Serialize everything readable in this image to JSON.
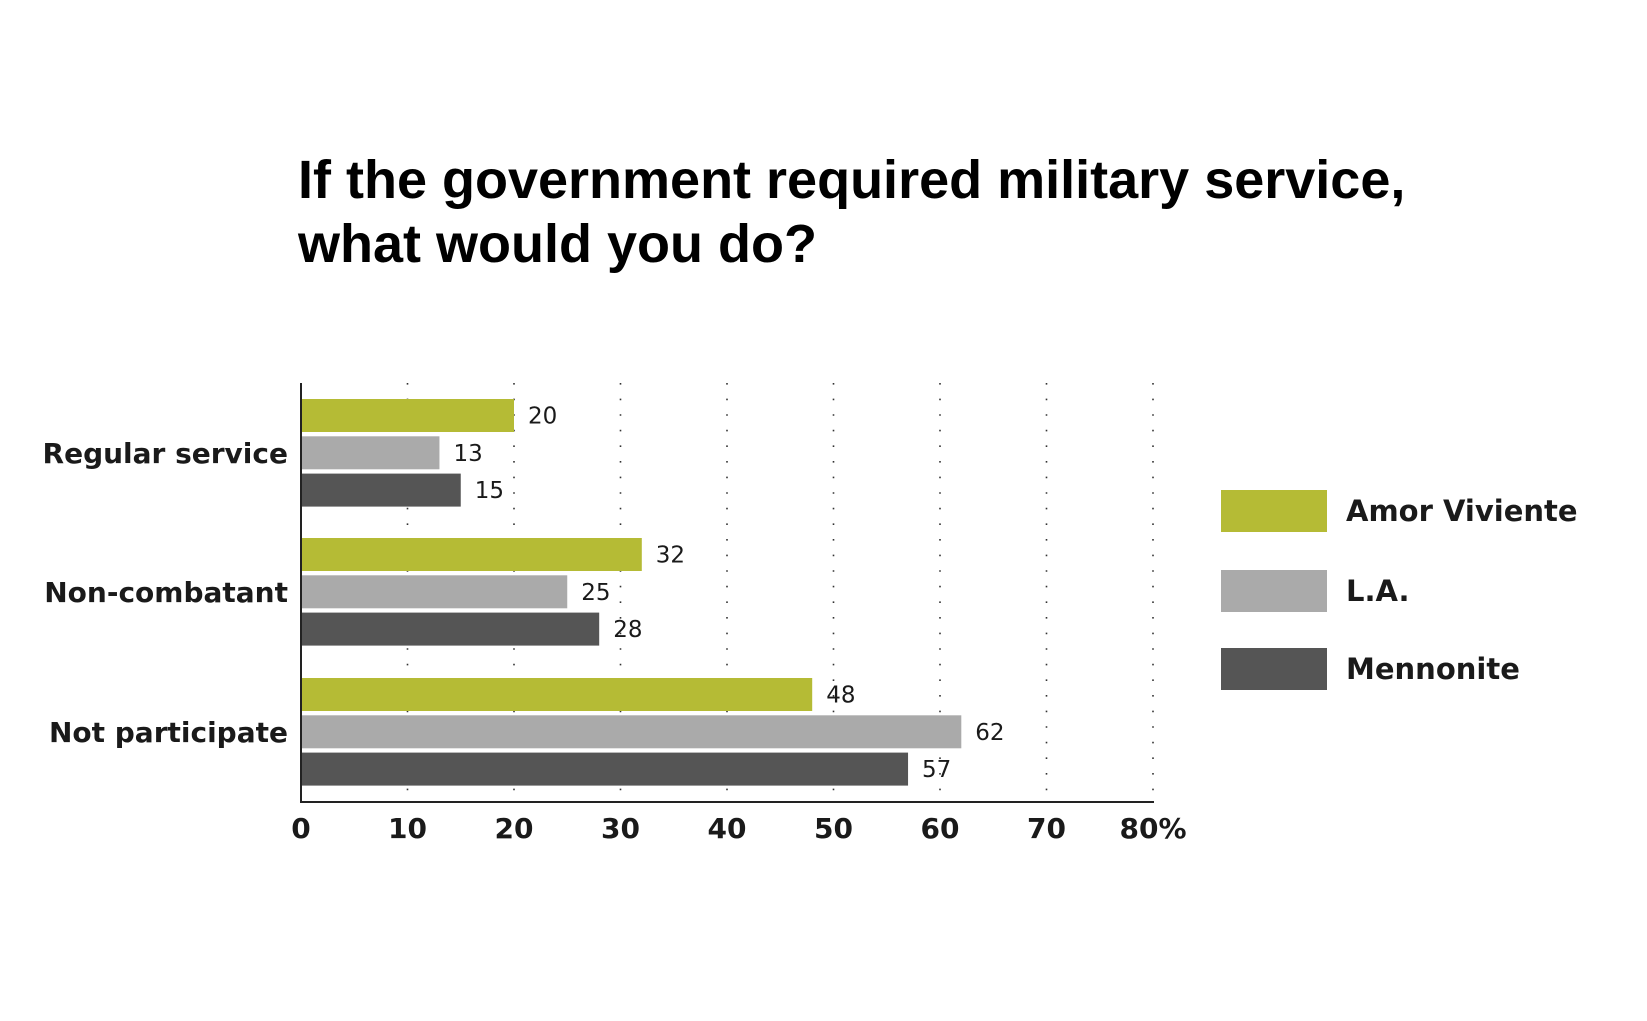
{
  "chart_data": {
    "type": "bar",
    "orientation": "horizontal",
    "title": [
      "If the government required military service,",
      "what would you do?"
    ],
    "categories": [
      "Regular service",
      "Non-combatant",
      "Not participate"
    ],
    "series": [
      {
        "name": "Amor Viviente",
        "color": "#b5bb35",
        "values": [
          20,
          32,
          48
        ]
      },
      {
        "name": "L.A.",
        "color": "#aaaaaa",
        "values": [
          13,
          25,
          62
        ]
      },
      {
        "name": "Mennonite",
        "color": "#555555",
        "values": [
          15,
          28,
          57
        ]
      }
    ],
    "xticks": [
      "0",
      "10",
      "20",
      "30",
      "40",
      "50",
      "60",
      "70",
      "80%"
    ],
    "xlim": [
      0,
      80
    ],
    "grid": "dotted vertical",
    "legend_position": "right"
  }
}
